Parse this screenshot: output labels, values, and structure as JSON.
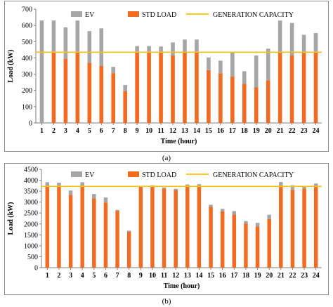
{
  "chart_data": [
    {
      "type": "bar",
      "stacked": true,
      "caption": "(a)",
      "xlabel": "Time (hour)",
      "ylabel": "Load (kW)",
      "ylim": [
        0,
        700
      ],
      "yticks": [
        0,
        100,
        200,
        300,
        400,
        500,
        600,
        700
      ],
      "grid": false,
      "legend_position": "top",
      "categories": [
        "1",
        "2",
        "3",
        "4",
        "5",
        "6",
        "7",
        "8",
        "9",
        "10",
        "11",
        "12",
        "13",
        "14",
        "15",
        "16",
        "17",
        "18",
        "19",
        "20",
        "21",
        "22",
        "23",
        "24"
      ],
      "series": [
        {
          "name": "STD LOAD",
          "kind": "bar",
          "color": "#f26b21",
          "values": [
            0,
            435,
            395,
            435,
            370,
            350,
            305,
            195,
            435,
            435,
            435,
            415,
            435,
            435,
            325,
            305,
            285,
            240,
            220,
            262,
            435,
            415,
            430,
            435
          ]
        },
        {
          "name": "EV",
          "kind": "bar",
          "color": "#a6a6a6",
          "values": [
            630,
            195,
            193,
            195,
            195,
            232,
            40,
            38,
            38,
            38,
            35,
            80,
            78,
            78,
            78,
            78,
            152,
            78,
            195,
            195,
            195,
            200,
            112,
            118
          ]
        },
        {
          "name": "GENERATION CAPACITY",
          "kind": "line",
          "color": "#ffc000",
          "values": [
            435,
            435,
            435,
            435,
            435,
            435,
            435,
            435,
            435,
            435,
            435,
            435,
            435,
            435,
            435,
            435,
            435,
            435,
            435,
            435,
            435,
            435,
            435,
            435
          ]
        }
      ]
    },
    {
      "type": "bar",
      "stacked": true,
      "caption": "(b)",
      "xlabel": "Time (hour)",
      "ylabel": "Load (kW)",
      "ylim": [
        0,
        4500
      ],
      "yticks": [
        0,
        500,
        1000,
        1500,
        2000,
        2500,
        3000,
        3500,
        4000,
        4500
      ],
      "grid": false,
      "legend_position": "top",
      "categories": [
        "1",
        "2",
        "3",
        "4",
        "5",
        "6",
        "7",
        "8",
        "9",
        "10",
        "11",
        "12",
        "13",
        "14",
        "15",
        "16",
        "17",
        "18",
        "19",
        "20",
        "21",
        "22",
        "23",
        "24"
      ],
      "series": [
        {
          "name": "STD LOAD",
          "kind": "bar",
          "color": "#f26b21",
          "values": [
            3720,
            3700,
            3330,
            3720,
            3170,
            2980,
            2600,
            1650,
            3700,
            3720,
            3620,
            3550,
            3740,
            3720,
            2780,
            2580,
            2430,
            2020,
            1880,
            2220,
            3720,
            3560,
            3620,
            3720
          ]
        },
        {
          "name": "EV",
          "kind": "bar",
          "color": "#a6a6a6",
          "values": [
            190,
            190,
            200,
            190,
            200,
            230,
            45,
            45,
            45,
            45,
            50,
            60,
            70,
            100,
            100,
            110,
            160,
            110,
            170,
            200,
            200,
            210,
            120,
            130
          ]
        },
        {
          "name": "GENERATION CAPACITY",
          "kind": "line",
          "color": "#ffc000",
          "values": [
            3720,
            3720,
            3720,
            3720,
            3720,
            3720,
            3720,
            3720,
            3720,
            3720,
            3720,
            3720,
            3720,
            3720,
            3720,
            3720,
            3720,
            3720,
            3720,
            3720,
            3720,
            3720,
            3720,
            3720
          ]
        }
      ]
    }
  ]
}
